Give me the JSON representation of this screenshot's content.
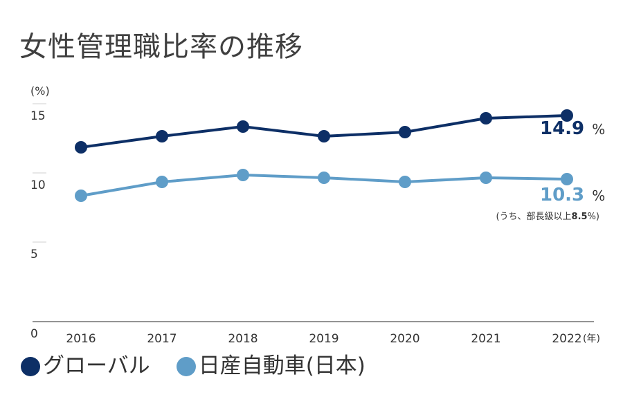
{
  "chart_data": {
    "type": "line",
    "title": "女性管理職比率の推移",
    "ylabel": "(%)",
    "xlabel": "(年)",
    "ylim": [
      0,
      15
    ],
    "yticks": [
      0,
      5,
      10,
      15
    ],
    "categories": [
      "2016",
      "2017",
      "2018",
      "2019",
      "2020",
      "2021",
      "2022"
    ],
    "series": [
      {
        "name": "グローバル",
        "color": "#0d2f66",
        "values": [
          12.6,
          13.4,
          14.1,
          13.4,
          13.7,
          14.7,
          14.9
        ]
      },
      {
        "name": "日産自動車(日本)",
        "color": "#5f9dc8",
        "values": [
          9.1,
          10.1,
          10.6,
          10.4,
          10.1,
          10.4,
          10.3
        ]
      }
    ],
    "callouts": {
      "global_value": "14.9",
      "japan_value": "10.3",
      "percent": "%",
      "note_prefix": "(うち、部長級以上",
      "note_value": "8.5",
      "note_suffix": "%)"
    }
  }
}
